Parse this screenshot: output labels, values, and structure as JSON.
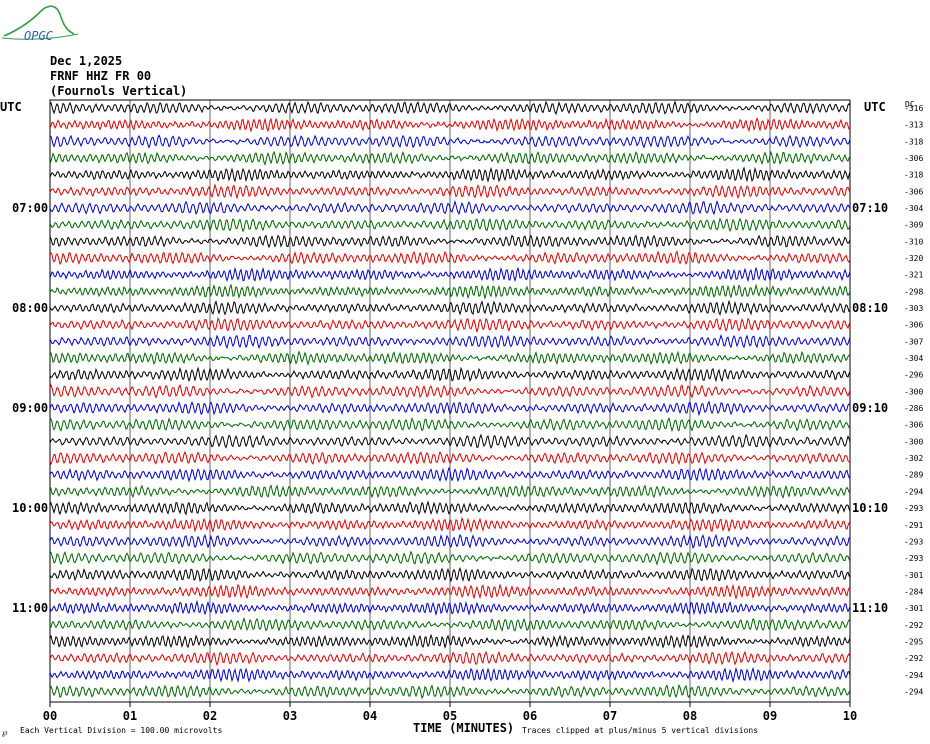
{
  "logo": {
    "text": "OPGC"
  },
  "header": {
    "date": "Dec 1,2025",
    "station": "FRNF HHZ FR 00",
    "location": "(Fournols Vertical)"
  },
  "corner_labels": {
    "left_utc": "UTC",
    "right_utc": "UTC",
    "right_dc": "DC"
  },
  "colors": {
    "trace_cycle": [
      "#000000",
      "#dd0000",
      "#0000cc",
      "#006600"
    ],
    "grid": "#000000"
  },
  "footer": {
    "note_left": "Each Vertical Division = 100.00 microvolts",
    "note_right": "Traces clipped at plus/minus 5 vertical divisions",
    "corner_mark": "℘"
  },
  "chart_data": {
    "type": "helicorder",
    "xlabel": "TIME (MINUTES)",
    "x_ticks": [
      "00",
      "01",
      "02",
      "03",
      "04",
      "05",
      "06",
      "07",
      "08",
      "09",
      "10"
    ],
    "xlim": [
      0,
      10
    ],
    "traces_per_hour": 6,
    "left_time_labels": [
      {
        "label": "07:00",
        "row": 6
      },
      {
        "label": "08:00",
        "row": 12
      },
      {
        "label": "09:00",
        "row": 18
      },
      {
        "label": "10:00",
        "row": 24
      },
      {
        "label": "11:00",
        "row": 30
      }
    ],
    "right_time_labels": [
      {
        "label": "07:10",
        "row": 6
      },
      {
        "label": "08:10",
        "row": 12
      },
      {
        "label": "09:10",
        "row": 18
      },
      {
        "label": "10:10",
        "row": 24
      },
      {
        "label": "11:10",
        "row": 30
      }
    ],
    "dc_offsets": [
      "-316",
      "-313",
      "-318",
      "-306",
      "-318",
      "-306",
      "-304",
      "-309",
      "-310",
      "-320",
      "-321",
      "-298",
      "-303",
      "-306",
      "-307",
      "-304",
      "-296",
      "-300",
      "-286",
      "-306",
      "-300",
      "-302",
      "-289",
      "-294",
      "-293",
      "-291",
      "-293",
      "-293",
      "-301",
      "-284",
      "-301",
      "-292",
      "-295",
      "-292",
      "-294",
      "-294"
    ]
  }
}
